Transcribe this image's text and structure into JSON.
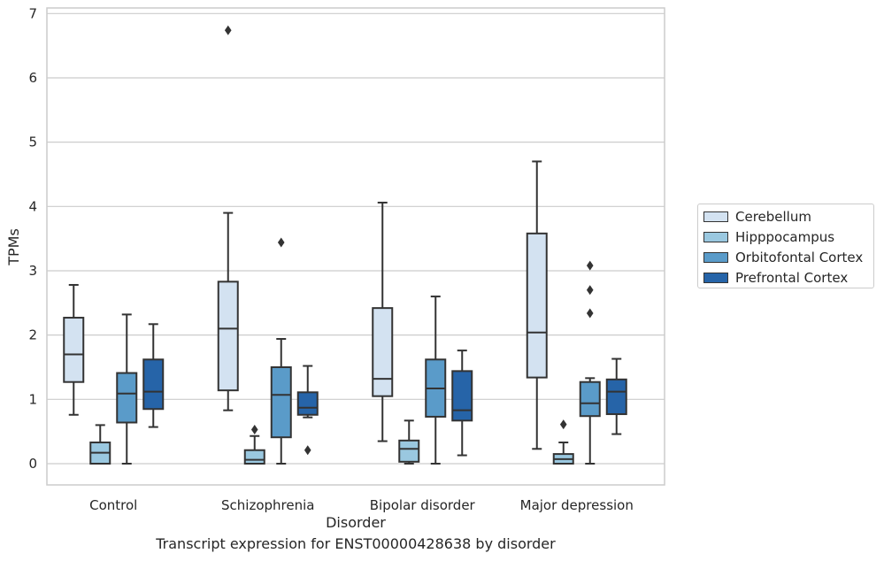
{
  "chart_data": {
    "type": "box",
    "caption": "Transcript expression for ENST00000428638 by disorder",
    "xlabel": "Disorder",
    "ylabel": "TPMs",
    "ylim": [
      -0.32,
      7.1
    ],
    "yticks": [
      0,
      1,
      2,
      3,
      4,
      5,
      6,
      7
    ],
    "grid": "horizontal",
    "legend_position": "right",
    "categories": [
      "Control",
      "Schizophrenia",
      "Bipolar disorder",
      "Major depression"
    ],
    "series": [
      {
        "name": "Cerebellum",
        "color": "#d3e2f1",
        "boxes": [
          {
            "whisker_low": 0.76,
            "q1": 1.27,
            "median": 1.7,
            "q3": 2.27,
            "whisker_high": 2.78,
            "outliers": []
          },
          {
            "whisker_low": 0.83,
            "q1": 1.14,
            "median": 2.1,
            "q3": 2.83,
            "whisker_high": 3.9,
            "outliers": [
              6.74
            ]
          },
          {
            "whisker_low": 0.35,
            "q1": 1.05,
            "median": 1.32,
            "q3": 2.42,
            "whisker_high": 4.06,
            "outliers": []
          },
          {
            "whisker_low": 0.23,
            "q1": 1.34,
            "median": 2.04,
            "q3": 3.58,
            "whisker_high": 4.7,
            "outliers": []
          }
        ]
      },
      {
        "name": "Hipppocampus",
        "color": "#9ac8e0",
        "boxes": [
          {
            "whisker_low": 0.0,
            "q1": 0.0,
            "median": 0.17,
            "q3": 0.33,
            "whisker_high": 0.6,
            "outliers": []
          },
          {
            "whisker_low": 0.0,
            "q1": 0.0,
            "median": 0.06,
            "q3": 0.21,
            "whisker_high": 0.43,
            "outliers": [
              0.53
            ]
          },
          {
            "whisker_low": 0.0,
            "q1": 0.03,
            "median": 0.23,
            "q3": 0.36,
            "whisker_high": 0.67,
            "outliers": []
          },
          {
            "whisker_low": 0.0,
            "q1": 0.0,
            "median": 0.07,
            "q3": 0.15,
            "whisker_high": 0.33,
            "outliers": [
              0.61
            ]
          }
        ]
      },
      {
        "name": "Orbitofontal Cortex",
        "color": "#5a9bc9",
        "boxes": [
          {
            "whisker_low": 0.0,
            "q1": 0.64,
            "median": 1.09,
            "q3": 1.41,
            "whisker_high": 2.32,
            "outliers": []
          },
          {
            "whisker_low": 0.0,
            "q1": 0.41,
            "median": 1.07,
            "q3": 1.5,
            "whisker_high": 1.94,
            "outliers": [
              3.44
            ]
          },
          {
            "whisker_low": 0.0,
            "q1": 0.73,
            "median": 1.17,
            "q3": 1.62,
            "whisker_high": 2.6,
            "outliers": []
          },
          {
            "whisker_low": 0.0,
            "q1": 0.74,
            "median": 0.94,
            "q3": 1.27,
            "whisker_high": 1.33,
            "outliers": [
              2.34,
              2.7,
              3.08
            ]
          }
        ]
      },
      {
        "name": "Prefrontal Cortex",
        "color": "#2664a8",
        "boxes": [
          {
            "whisker_low": 0.57,
            "q1": 0.85,
            "median": 1.12,
            "q3": 1.62,
            "whisker_high": 2.17,
            "outliers": []
          },
          {
            "whisker_low": 0.72,
            "q1": 0.76,
            "median": 0.87,
            "q3": 1.11,
            "whisker_high": 1.52,
            "outliers": [
              0.21
            ]
          },
          {
            "whisker_low": 0.13,
            "q1": 0.67,
            "median": 0.83,
            "q3": 1.44,
            "whisker_high": 1.76,
            "outliers": []
          },
          {
            "whisker_low": 0.46,
            "q1": 0.77,
            "median": 1.12,
            "q3": 1.31,
            "whisker_high": 1.63,
            "outliers": []
          }
        ]
      }
    ]
  }
}
